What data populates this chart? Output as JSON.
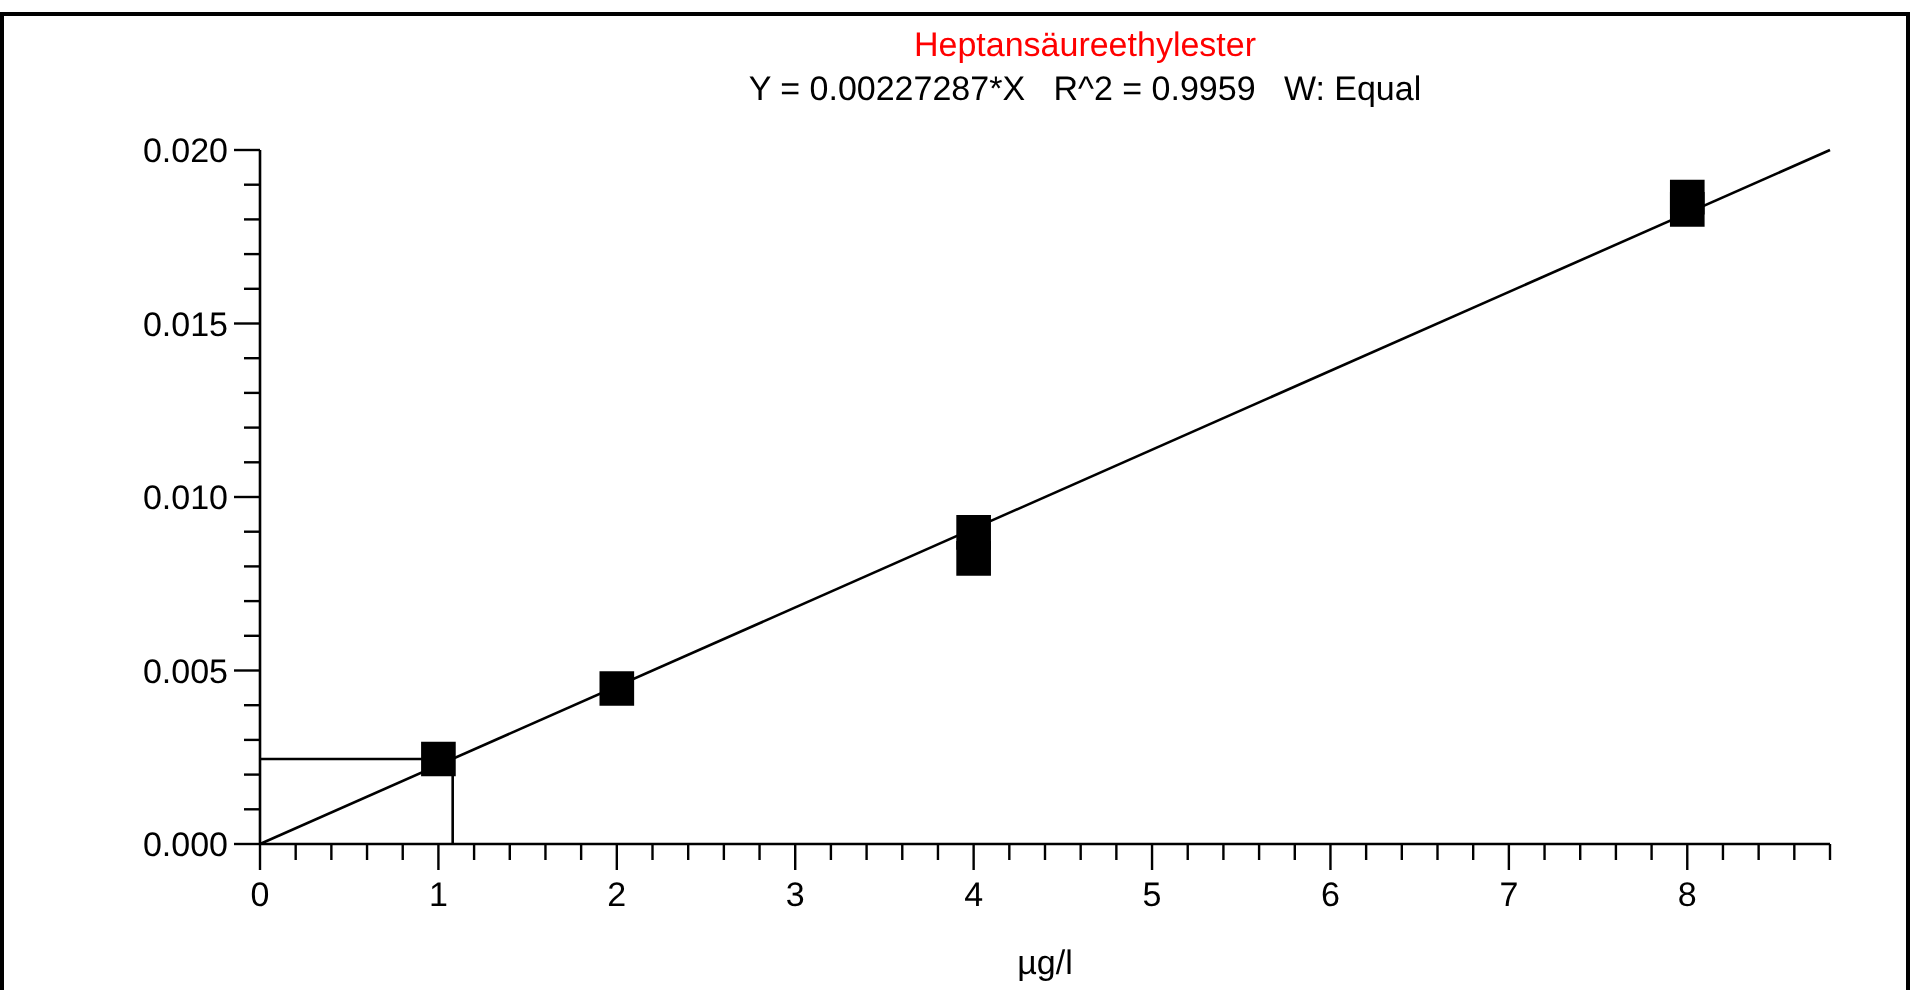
{
  "chart_data": {
    "type": "scatter",
    "title": "Heptansäureethylester",
    "subtitle": "Y = 0.00227287*X   R^2 = 0.9959   W: Equal",
    "xlabel": "µg/l",
    "series": [
      {
        "color": "#000000",
        "marker": "square",
        "x": [
          1,
          2,
          4,
          4,
          8,
          8
        ],
        "values": [
          0.00245,
          0.00448,
          0.00898,
          0.00823,
          0.01864,
          0.01829
        ]
      },
      {
        "type": "line",
        "color": "#000000",
        "x": [
          0,
          8.8
        ],
        "values": [
          0,
          0.02
        ]
      },
      {
        "type": "line",
        "color": "#000000",
        "x": [
          0,
          1.08,
          1.08
        ],
        "values": [
          0.00245,
          0.00245,
          0
        ]
      }
    ],
    "xlim": [
      0,
      8.8
    ],
    "ylim": [
      0,
      0.02
    ],
    "xticks": [
      0,
      {
        "value": 0.2,
        "label": null
      },
      {
        "value": 0.4,
        "label": null
      },
      {
        "value": 0.6,
        "label": null
      },
      {
        "value": 0.8,
        "label": null
      },
      1,
      {
        "value": 1.2,
        "label": null
      },
      {
        "value": 1.4,
        "label": null
      },
      {
        "value": 1.6,
        "label": null
      },
      {
        "value": 1.8,
        "label": null
      },
      2,
      {
        "value": 2.2,
        "label": null
      },
      {
        "value": 2.4,
        "label": null
      },
      {
        "value": 2.6,
        "label": null
      },
      {
        "value": 2.8,
        "label": null
      },
      3,
      {
        "value": 3.2,
        "label": null
      },
      {
        "value": 3.4,
        "label": null
      },
      {
        "value": 3.6,
        "label": null
      },
      {
        "value": 3.8,
        "label": null
      },
      4,
      {
        "value": 4.2,
        "label": null
      },
      {
        "value": 4.4,
        "label": null
      },
      {
        "value": 4.6,
        "label": null
      },
      {
        "value": 4.8,
        "label": null
      },
      5,
      {
        "value": 5.2,
        "label": null
      },
      {
        "value": 5.4,
        "label": null
      },
      {
        "value": 5.6,
        "label": null
      },
      {
        "value": 5.8,
        "label": null
      },
      6,
      {
        "value": 6.2,
        "label": null
      },
      {
        "value": 6.4,
        "label": null
      },
      {
        "value": 6.6,
        "label": null
      },
      {
        "value": 6.8,
        "label": null
      },
      7,
      {
        "value": 7.2,
        "label": null
      },
      {
        "value": 7.4,
        "label": null
      },
      {
        "value": 7.6,
        "label": null
      },
      {
        "value": 7.8,
        "label": null
      },
      8,
      {
        "value": 8.2,
        "label": null
      },
      {
        "value": 8.4,
        "label": null
      },
      {
        "value": 8.6,
        "label": null
      },
      {
        "value": 8.8,
        "label": null
      }
    ],
    "yticks": [
      {
        "value": 0,
        "label": "0.000"
      },
      {
        "value": 0.001,
        "label": null
      },
      {
        "value": 0.002,
        "label": null
      },
      {
        "value": 0.003,
        "label": null
      },
      {
        "value": 0.004,
        "label": null
      },
      {
        "value": 0.005,
        "label": "0.005"
      },
      {
        "value": 0.006,
        "label": null
      },
      {
        "value": 0.007,
        "label": null
      },
      {
        "value": 0.008,
        "label": null
      },
      {
        "value": 0.009,
        "label": null
      },
      {
        "value": 0.01,
        "label": "0.010"
      },
      {
        "value": 0.011,
        "label": null
      },
      {
        "value": 0.012,
        "label": null
      },
      {
        "value": 0.013,
        "label": null
      },
      {
        "value": 0.014,
        "label": null
      },
      {
        "value": 0.015,
        "label": "0.015"
      },
      {
        "value": 0.016,
        "label": null
      },
      {
        "value": 0.017,
        "label": null
      },
      {
        "value": 0.018,
        "label": null
      },
      {
        "value": 0.019,
        "label": null
      },
      {
        "value": 0.02,
        "label": "0.020"
      }
    ],
    "grid": false
  }
}
